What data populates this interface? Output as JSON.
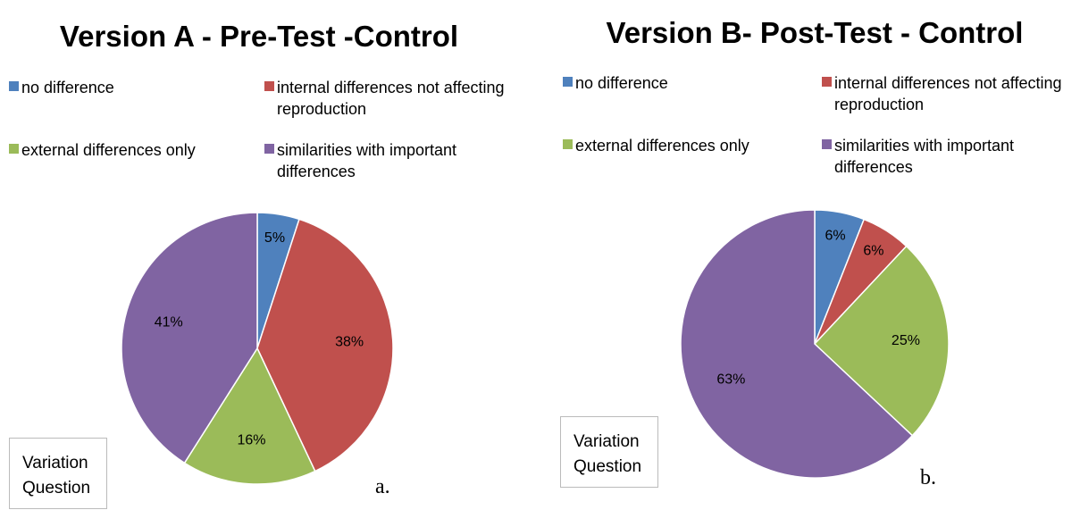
{
  "chart_data": [
    {
      "type": "pie",
      "title": "Version A - Pre-Test -Control",
      "categories": [
        "no difference",
        "internal differences not affecting reproduction",
        "external differences only",
        "similarities with important differences"
      ],
      "values": [
        5,
        38,
        16,
        41
      ],
      "value_labels": [
        "5%",
        "38%",
        "16%",
        "41%"
      ],
      "colors": [
        "#4f81bd",
        "#c0504d",
        "#9bbb59",
        "#8064a2"
      ],
      "annotations": [
        "Variation Question",
        "a."
      ]
    },
    {
      "type": "pie",
      "title": "Version B- Post-Test - Control",
      "categories": [
        "no difference",
        "internal differences not affecting reproduction",
        "external differences only",
        "similarities with important differences"
      ],
      "values": [
        6,
        6,
        25,
        63
      ],
      "value_labels": [
        "6%",
        "6%",
        "25%",
        "63%"
      ],
      "colors": [
        "#4f81bd",
        "#c0504d",
        "#9bbb59",
        "#8064a2"
      ],
      "annotations": [
        "Variation Question",
        "b."
      ]
    }
  ]
}
